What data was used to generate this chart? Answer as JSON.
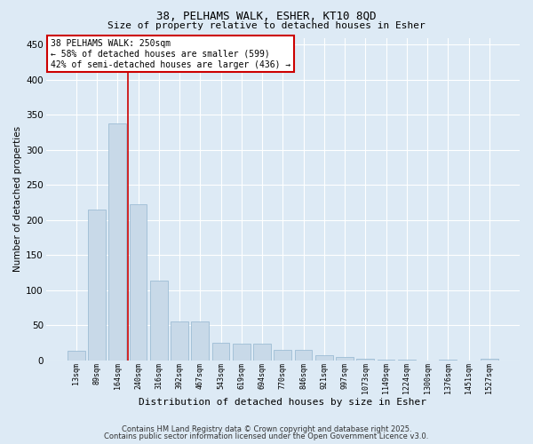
{
  "title1": "38, PELHAMS WALK, ESHER, KT10 8QD",
  "title2": "Size of property relative to detached houses in Esher",
  "xlabel": "Distribution of detached houses by size in Esher",
  "ylabel": "Number of detached properties",
  "categories": [
    "13sqm",
    "89sqm",
    "164sqm",
    "240sqm",
    "316sqm",
    "392sqm",
    "467sqm",
    "543sqm",
    "619sqm",
    "694sqm",
    "770sqm",
    "846sqm",
    "921sqm",
    "997sqm",
    "1073sqm",
    "1149sqm",
    "1224sqm",
    "1300sqm",
    "1376sqm",
    "1451sqm",
    "1527sqm"
  ],
  "values": [
    13,
    215,
    338,
    222,
    113,
    55,
    55,
    25,
    23,
    23,
    15,
    15,
    7,
    5,
    2,
    1,
    1,
    0,
    1,
    0,
    2
  ],
  "bar_color": "#c8d9e8",
  "bar_edge_color": "#9dbdd4",
  "vline_color": "#cc0000",
  "annotation_text": "38 PELHAMS WALK: 250sqm\n← 58% of detached houses are smaller (599)\n42% of semi-detached houses are larger (436) →",
  "annotation_box_color": "white",
  "annotation_box_edgecolor": "#cc0000",
  "ylim": [
    0,
    460
  ],
  "yticks": [
    0,
    50,
    100,
    150,
    200,
    250,
    300,
    350,
    400,
    450
  ],
  "background_color": "#ddeaf5",
  "grid_color": "#c0d4e8",
  "footer1": "Contains HM Land Registry data © Crown copyright and database right 2025.",
  "footer2": "Contains public sector information licensed under the Open Government Licence v3.0."
}
